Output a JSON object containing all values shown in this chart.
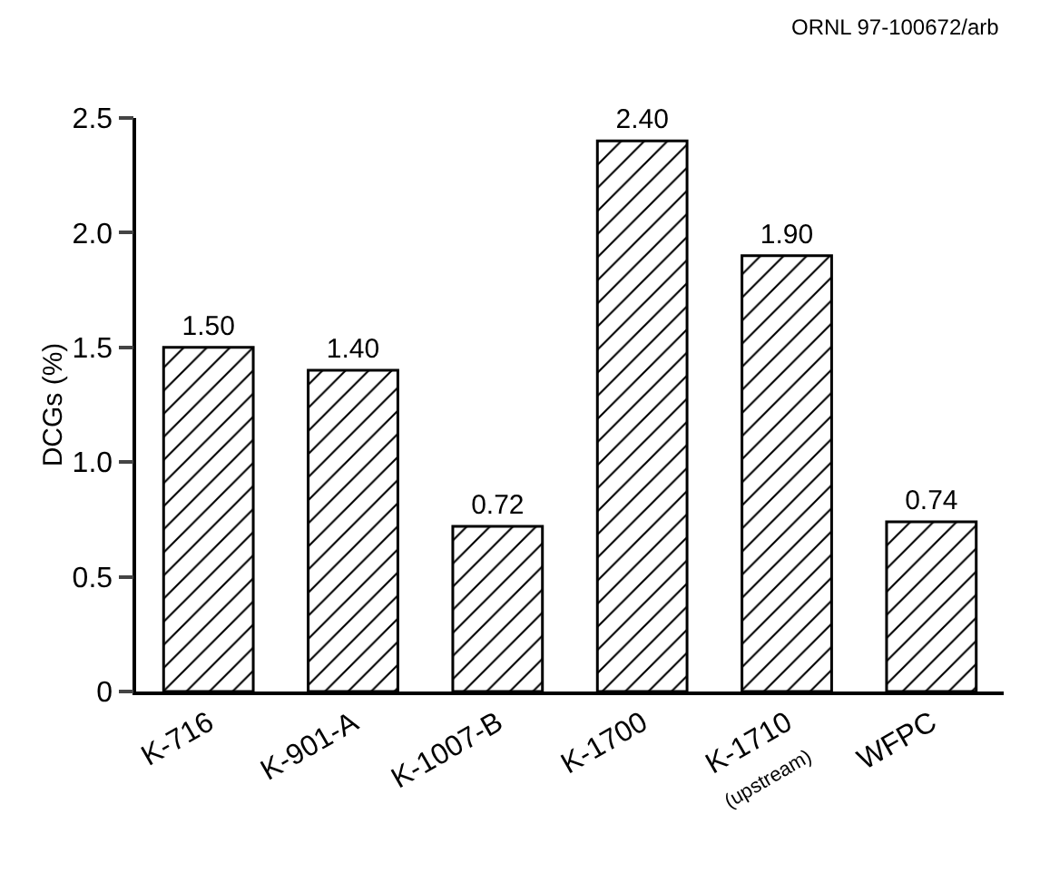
{
  "chart_data": {
    "type": "bar",
    "ylabel": "DCGs (%)",
    "categories": [
      "K-716",
      "K-901-A",
      "K-1007-B",
      "K-1700",
      "K-1710\n(upstream)",
      "WFPC"
    ],
    "values": [
      1.5,
      1.4,
      0.72,
      2.4,
      1.9,
      0.74
    ],
    "value_labels": [
      "1.50",
      "1.40",
      "0.72",
      "2.40",
      "1.90",
      "0.74"
    ],
    "color": "#000000",
    "ylim": [
      0,
      2.5
    ],
    "yticks": [
      0,
      {
        "value": 0.5,
        "label": "0.5"
      },
      {
        "value": 1,
        "label": "1.0"
      },
      {
        "value": 1.5,
        "label": "1.5"
      },
      {
        "value": 2,
        "label": "2.0"
      },
      {
        "value": 2.5,
        "label": "2.5"
      }
    ],
    "grid": false,
    "annotations": [
      "ORNL 97-100672/arb"
    ]
  }
}
